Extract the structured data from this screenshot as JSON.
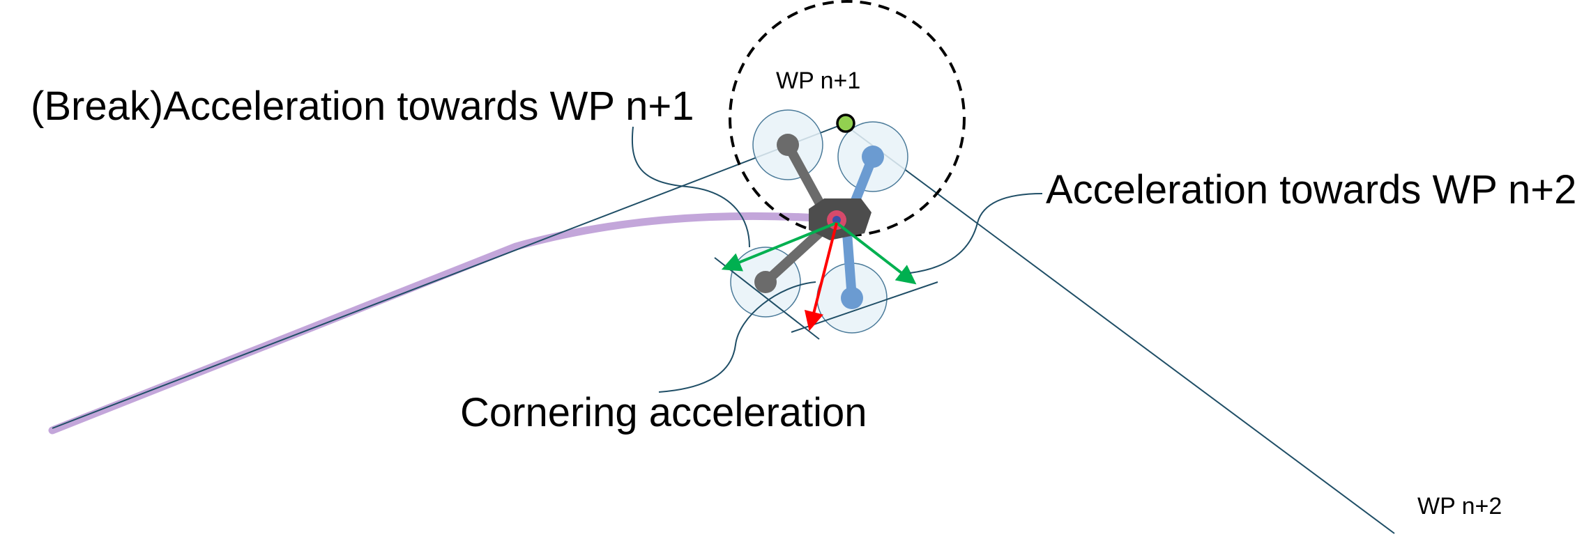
{
  "labels": {
    "brake_acceleration": "(Break)Acceleration towards WP n+1",
    "accel_wp2": "Acceleration towards WP n+2",
    "cornering": "Cornering acceleration",
    "wp_n1": "WP n+1",
    "wp_n2": "WP n+2"
  },
  "colors": {
    "trajectory": "#c3a6da",
    "path_line": "#1f4e66",
    "waypoint_fill": "#92d050",
    "green_arrow": "#00b050",
    "red_arrow": "#ff0000",
    "arm_gray": "#6b6b6b",
    "arm_blue": "#6b9bd1",
    "body": "#4d4d4d",
    "center": "#d64a6b"
  }
}
